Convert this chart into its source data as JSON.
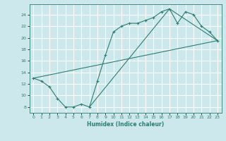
{
  "title": "",
  "xlabel": "Humidex (Indice chaleur)",
  "bg_color": "#cce8ec",
  "grid_color": "#ffffff",
  "line_color": "#2e7d6e",
  "xlim": [
    -0.5,
    23.5
  ],
  "ylim": [
    7.0,
    25.8
  ],
  "yticks": [
    8,
    10,
    12,
    14,
    16,
    18,
    20,
    22,
    24
  ],
  "xticks": [
    0,
    1,
    2,
    3,
    4,
    5,
    6,
    7,
    8,
    9,
    10,
    11,
    12,
    13,
    14,
    15,
    16,
    17,
    18,
    19,
    20,
    21,
    22,
    23
  ],
  "line1_x": [
    0,
    1,
    2,
    3,
    4,
    5,
    6,
    7,
    8,
    9,
    10,
    11,
    12,
    13,
    14,
    15,
    16,
    17,
    18,
    19,
    20,
    21,
    22,
    23
  ],
  "line1_y": [
    13.0,
    12.5,
    11.5,
    9.5,
    8.0,
    8.0,
    8.5,
    8.0,
    12.5,
    17.0,
    21.0,
    22.0,
    22.5,
    22.5,
    23.0,
    23.5,
    24.5,
    25.0,
    22.5,
    24.5,
    24.0,
    22.0,
    21.0,
    19.5
  ],
  "line2_x": [
    0,
    23
  ],
  "line2_y": [
    13.0,
    19.5
  ],
  "line3_x": [
    7,
    17,
    23
  ],
  "line3_y": [
    8.0,
    25.0,
    19.5
  ]
}
